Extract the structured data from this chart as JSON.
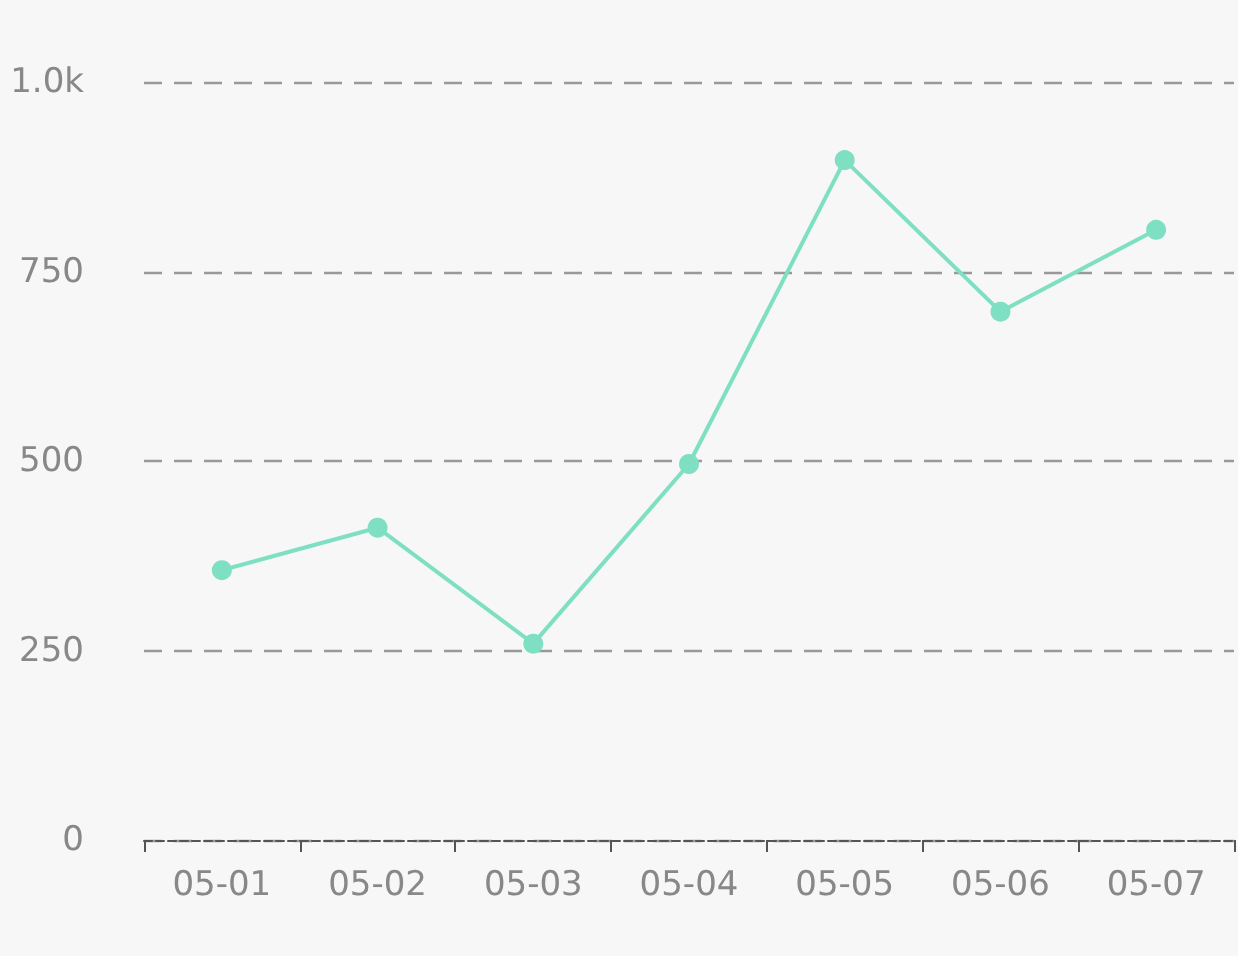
{
  "chart_data": {
    "type": "line",
    "categories": [
      "05-01",
      "05-02",
      "05-03",
      "05-04",
      "05-05",
      "05-06",
      "05-07"
    ],
    "series": [
      {
        "color": "#7fdfc2",
        "values": [
          356,
          412,
          259,
          496,
          897,
          697,
          805
        ]
      }
    ],
    "ylim": [
      0,
      1000
    ],
    "yticks": [
      0,
      250,
      500,
      750,
      {
        "value": 1000,
        "label": "1.0k"
      }
    ],
    "grid": "y",
    "marker": "circle",
    "line_style": "solid"
  }
}
